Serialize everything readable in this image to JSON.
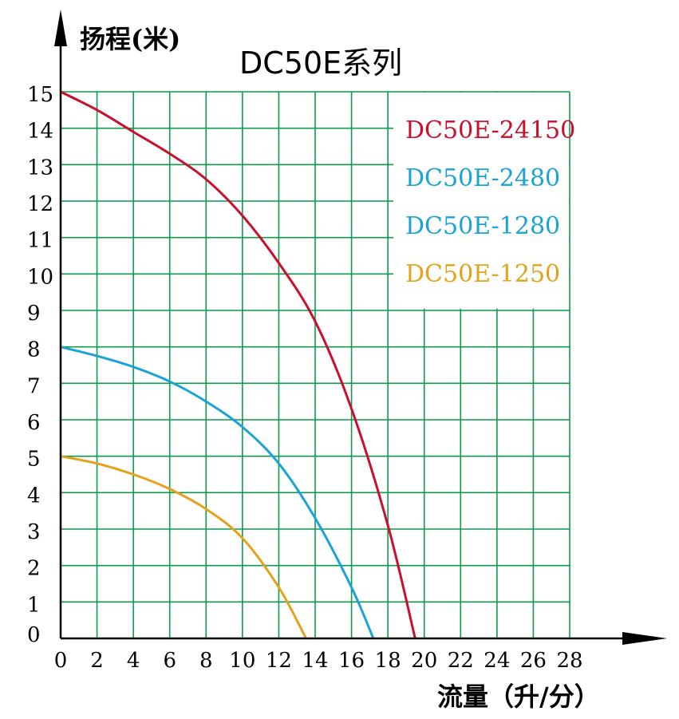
{
  "chart_data": {
    "type": "line",
    "title": "DC50E系列",
    "ylabel": "扬程(米)",
    "xlabel": "流量（升/分）",
    "xlim": [
      0,
      28
    ],
    "ylim": [
      0,
      15
    ],
    "x_ticks": [
      "0",
      "2",
      "4",
      "6",
      "8",
      "10",
      "12",
      "14",
      "16",
      "18",
      "20",
      "22",
      "24",
      "26",
      "28"
    ],
    "y_ticks": [
      "0",
      "1",
      "2",
      "3",
      "4",
      "5",
      "6",
      "7",
      "8",
      "9",
      "10",
      "11",
      "12",
      "13",
      "14",
      "15"
    ],
    "grid": true,
    "legend_position": "top-right",
    "legend": [
      {
        "label": "DC50E-24150",
        "color": "#c8102e"
      },
      {
        "label": "DC50E-2480",
        "color": "#1aa3d6"
      },
      {
        "label": "DC50E-1280",
        "color": "#1aa3d6"
      },
      {
        "label": "DC50E-1250",
        "color": "#e3a21a"
      }
    ],
    "series": [
      {
        "name": "DC50E-24150",
        "color": "#c8102e",
        "x": [
          0,
          2,
          4,
          6,
          8,
          10,
          12,
          14,
          16,
          18,
          19.5
        ],
        "y": [
          15,
          14.5,
          13.9,
          13.3,
          12.6,
          11.6,
          10.3,
          8.7,
          6.3,
          3.1,
          0
        ]
      },
      {
        "name": "DC50E-2480",
        "color": "#1aa3d6",
        "x": [
          0,
          2,
          4,
          6,
          8,
          10,
          12,
          14,
          16,
          17.2
        ],
        "y": [
          8,
          7.75,
          7.45,
          7.05,
          6.5,
          5.8,
          4.8,
          3.3,
          1.4,
          0
        ]
      },
      {
        "name": "DC50E-1250",
        "color": "#e3a21a",
        "x": [
          0,
          2,
          4,
          6,
          8,
          10,
          12,
          13.5
        ],
        "y": [
          5,
          4.8,
          4.5,
          4.1,
          3.55,
          2.75,
          1.4,
          0
        ]
      }
    ]
  }
}
